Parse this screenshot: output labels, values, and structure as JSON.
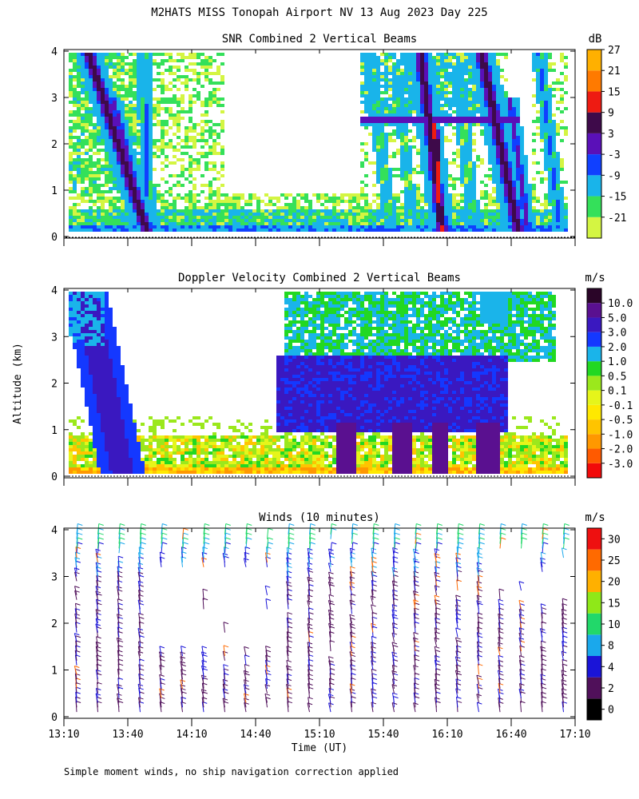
{
  "page": {
    "title": "M2HATS MISS Tonopah Airport NV  13 Aug 2023 Day 225",
    "footnote": "Simple moment winds, no ship navigation correction applied"
  },
  "chart_data": [
    {
      "type": "heatmap",
      "title": "SNR Combined 2 Vertical Beams",
      "ylabel": "",
      "ylim": [
        0,
        4
      ],
      "yticks": [
        "0",
        "1",
        "2",
        "3",
        "4"
      ],
      "xlim": [
        "13:10",
        "17:10"
      ],
      "colorbar": {
        "unit": "dB",
        "labels": [
          "-21",
          "-15",
          "-9",
          "-3",
          "3",
          "9",
          "15",
          "21",
          "27"
        ],
        "colors": [
          "#d4f542",
          "#34e05a",
          "#19b4ea",
          "#1040ff",
          "#5a10b8",
          "#3e0a4a",
          "#ee1b12",
          "#ff7a00",
          "#ffb000"
        ]
      }
    },
    {
      "type": "heatmap",
      "title": "Doppler Velocity Combined 2 Vertical Beams",
      "ylabel": "Altitude (km)",
      "ylim": [
        0,
        4
      ],
      "yticks": [
        "0",
        "1",
        "2",
        "3",
        "4"
      ],
      "xlim": [
        "13:10",
        "17:10"
      ],
      "colorbar": {
        "unit": "m/s",
        "labels": [
          "-3.0",
          "-2.0",
          "-1.0",
          "-0.5",
          "-0.1",
          "0.1",
          "0.5",
          "1.0",
          "2.0",
          "3.0",
          "5.0",
          "10.0"
        ],
        "colors": [
          "#f20a0a",
          "#ff5a00",
          "#ff9800",
          "#ffc400",
          "#ffe800",
          "#e6f51a",
          "#9be81c",
          "#22d822",
          "#1ab4ea",
          "#1438ff",
          "#3a18c0",
          "#5a1090",
          "#2a0528"
        ]
      }
    },
    {
      "type": "scatter",
      "title": "Winds (10 minutes)",
      "ylabel": "",
      "ylim": [
        0,
        4
      ],
      "yticks": [
        "0",
        "1",
        "2",
        "3",
        "4"
      ],
      "xlabel": "Time (UT)",
      "x": [
        "13:10",
        "13:40",
        "14:10",
        "14:40",
        "15:10",
        "15:40",
        "16:10",
        "16:40",
        "17:10"
      ],
      "colorbar": {
        "unit": "m/s",
        "labels": [
          "0",
          "2",
          "4",
          "8",
          "10",
          "15",
          "20",
          "25",
          "30"
        ],
        "colors": [
          "#000000",
          "#50105a",
          "#1a14d8",
          "#1aa8ec",
          "#22d86a",
          "#8fe818",
          "#ffb000",
          "#ff6a00",
          "#ee1010"
        ]
      }
    }
  ]
}
